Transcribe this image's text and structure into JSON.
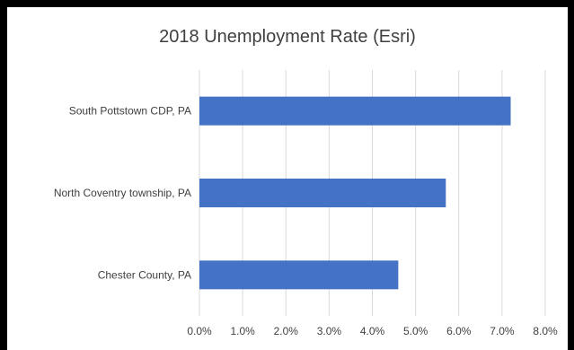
{
  "chart_data": {
    "type": "bar",
    "orientation": "horizontal",
    "title": "2018 Unemployment Rate (Esri)",
    "categories": [
      "South Pottstown CDP, PA",
      "North Coventry township, PA",
      "Chester County, PA"
    ],
    "values": [
      7.2,
      5.7,
      4.6
    ],
    "xlabel": "",
    "ylabel": "",
    "xlim": [
      0,
      8
    ],
    "xticks": [
      "0.0%",
      "1.0%",
      "2.0%",
      "3.0%",
      "4.0%",
      "5.0%",
      "6.0%",
      "7.0%",
      "8.0%"
    ],
    "grid": true,
    "legend": "none",
    "bar_color": "#4472C4",
    "grid_color": "#D9D9D9"
  }
}
